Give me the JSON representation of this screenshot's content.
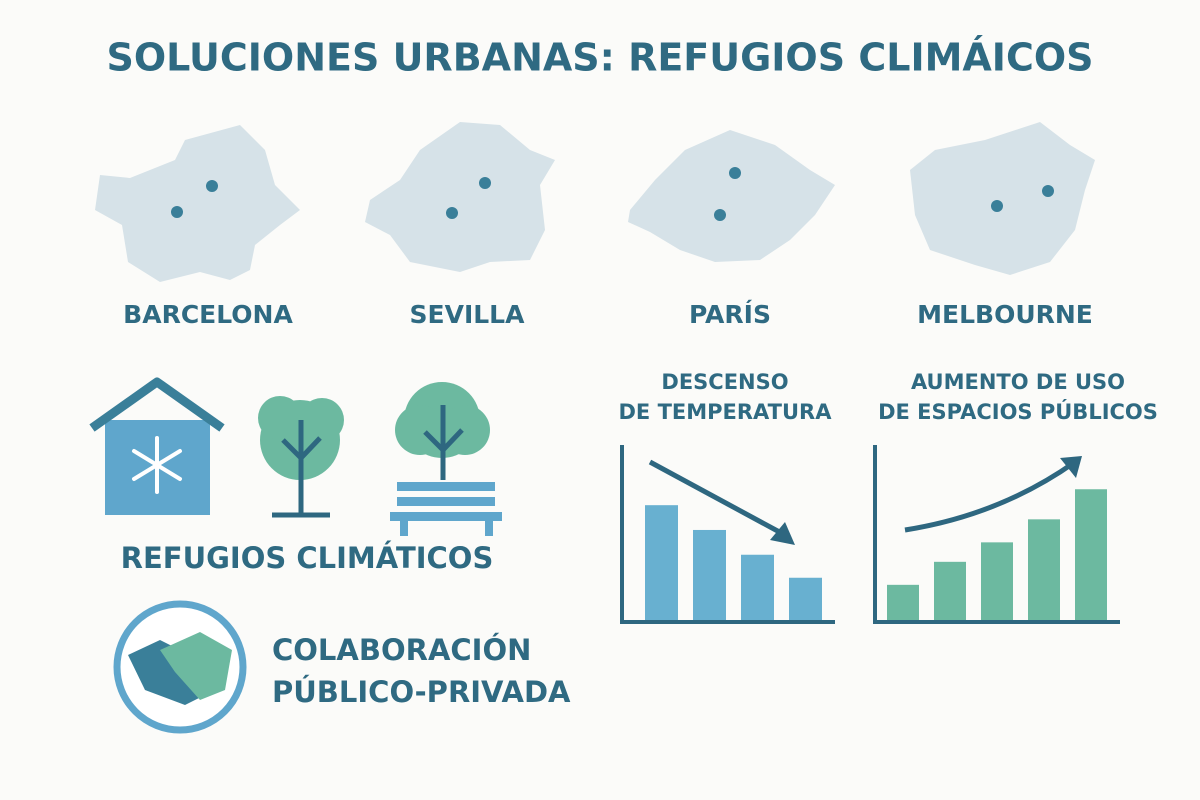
{
  "title": "SOLUCIONES URBANAS: REFUGIOS CLIMÁICOS",
  "cities": [
    "BARCELONA",
    "SEVILLA",
    "PARÍS",
    "MELBOURNE"
  ],
  "refuges_label": "REFUGIOS CLIMÁTICOS",
  "collaboration_label": [
    "COLABORACIÓN",
    "PÚBLICO-PRIVADA"
  ],
  "chart_data": [
    {
      "type": "bar",
      "title": [
        "DESCENSO",
        "DE TEMPERATURA"
      ],
      "values": [
        66,
        52,
        38,
        25
      ],
      "color": "#68b0d0",
      "ylim": [
        0,
        100
      ]
    },
    {
      "type": "bar",
      "title": [
        "AUMENTO DE USO",
        "DE ESPACIOS PÚBLICOS"
      ],
      "values": [
        21,
        34,
        45,
        58,
        75
      ],
      "color": "#6cb9a0",
      "ylim": [
        0,
        100
      ]
    }
  ]
}
